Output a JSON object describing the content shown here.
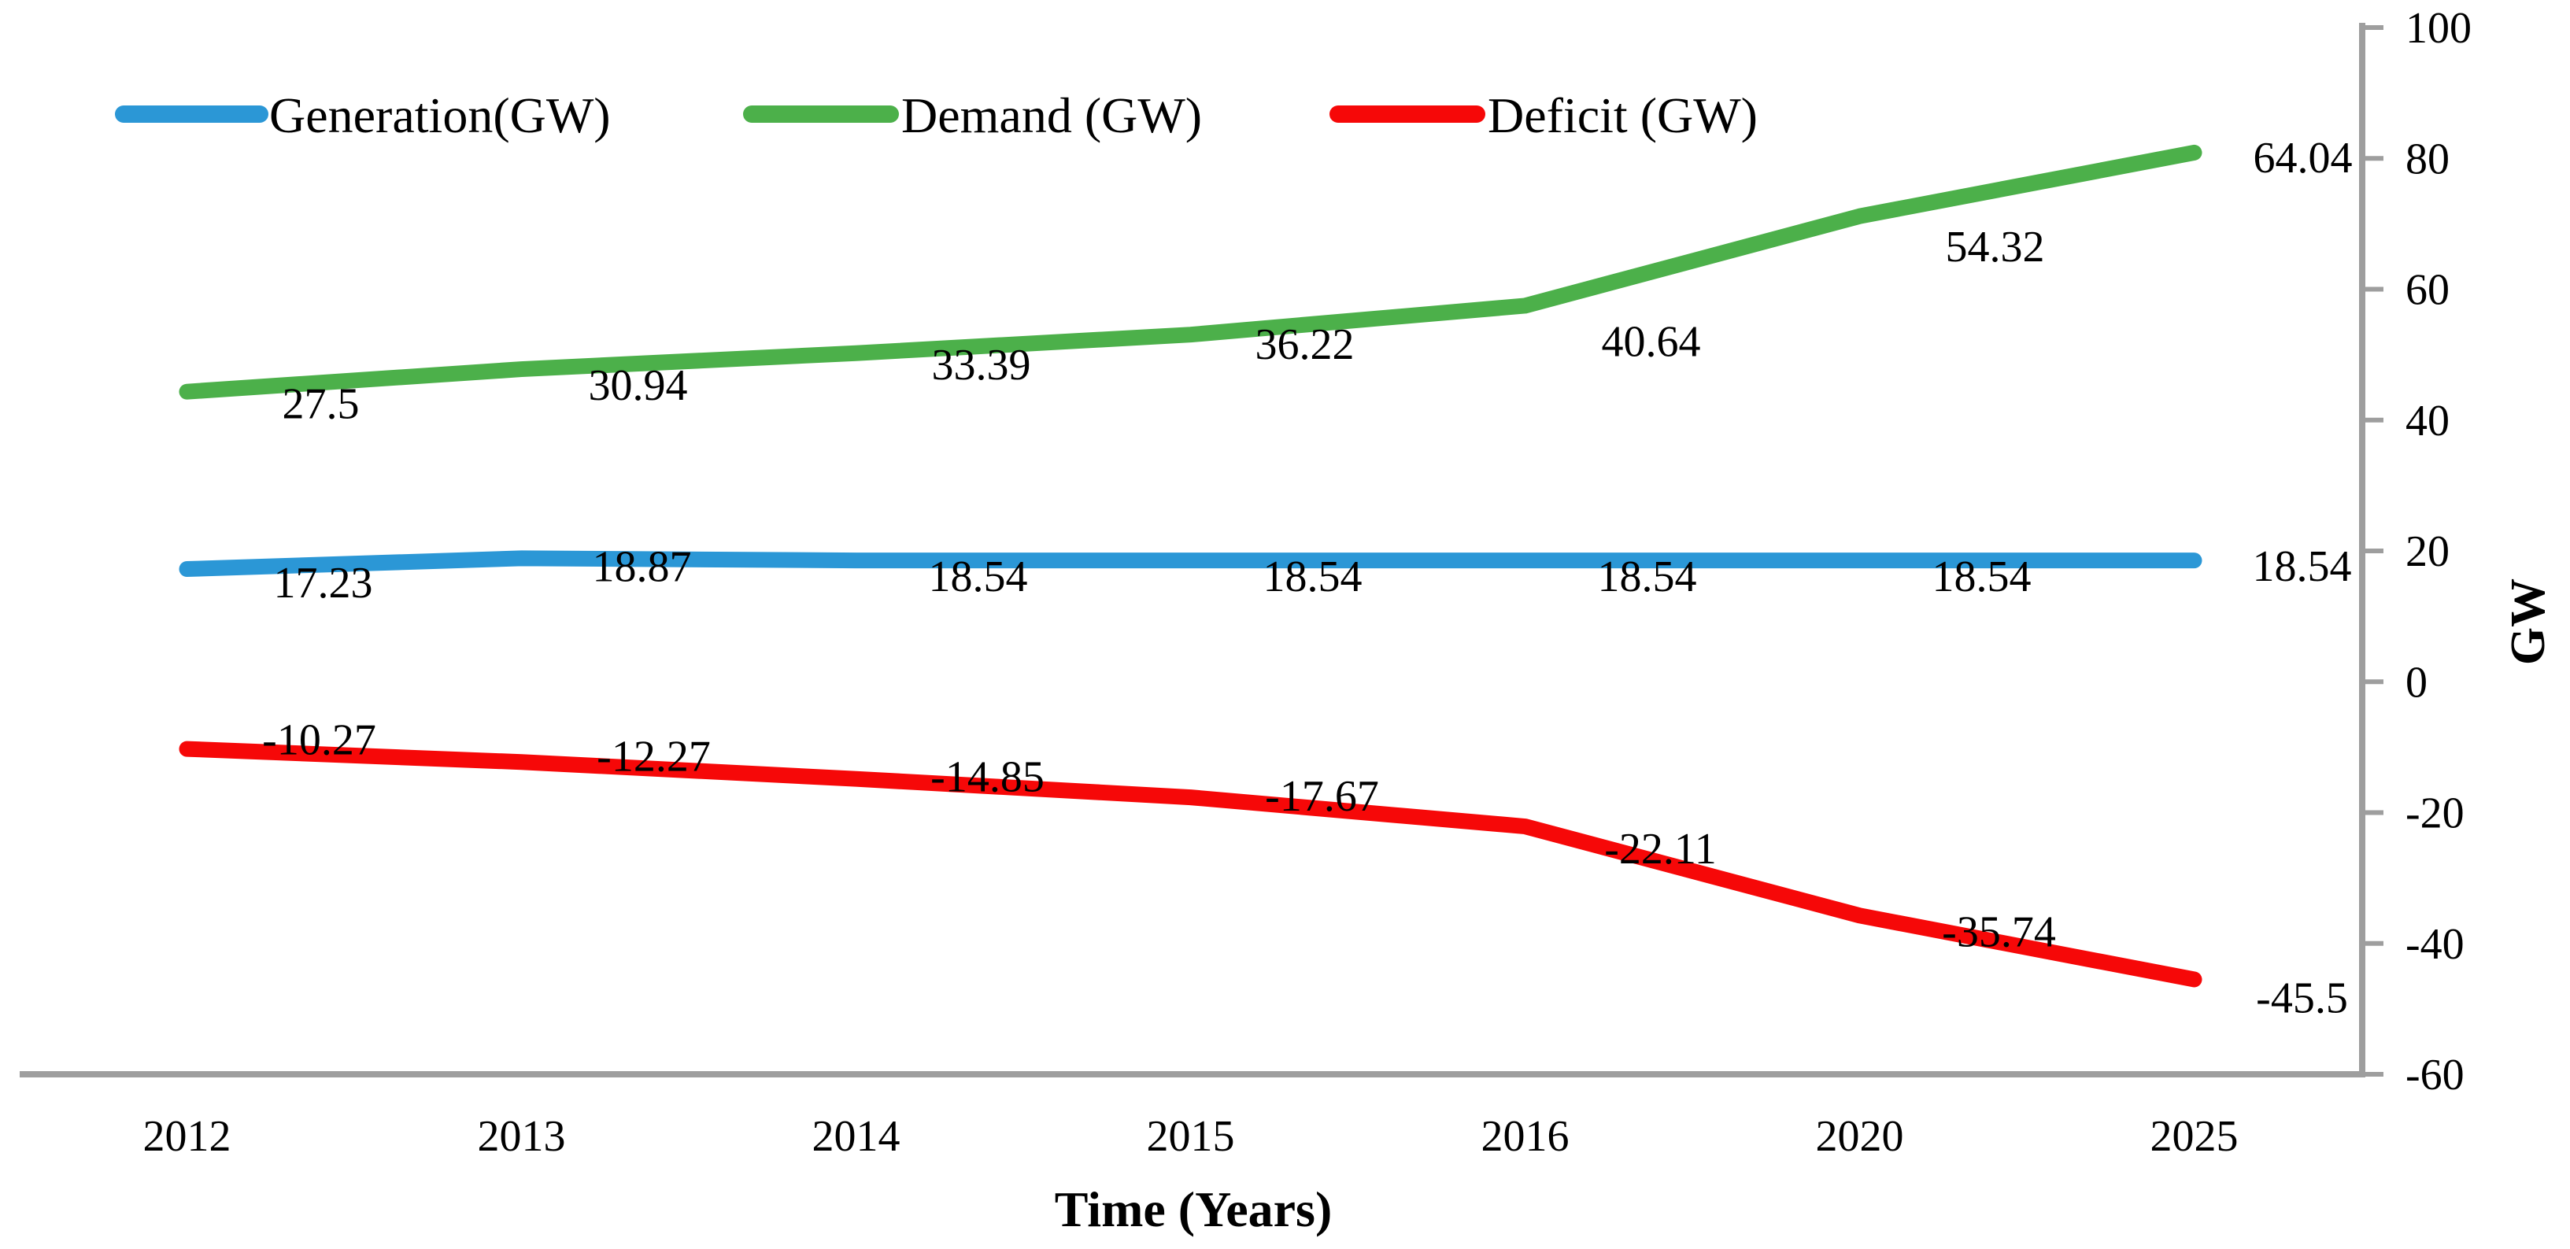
{
  "figure": {
    "background": "#ffffff",
    "description": "Line chart of power Generation, Demand and Deficit in GW over years"
  },
  "chart_data": {
    "type": "line",
    "title": "",
    "xlabel": "Time (Years)",
    "ylabel": "GW",
    "x_categories": [
      "2012",
      "2013",
      "2014",
      "2015",
      "2016",
      "2020",
      "2025"
    ],
    "ylim": [
      -60,
      100
    ],
    "y_ticks": [
      100,
      80,
      60,
      40,
      20,
      0,
      -20,
      -40,
      -60
    ],
    "y_tick_labels": [
      "100",
      "80",
      "60",
      "40",
      "20",
      "0",
      "-20",
      "-40",
      "-60"
    ],
    "y_axis_side": "right",
    "grid": false,
    "legend_position": "top-inside",
    "axis_color": "#9e9e9e",
    "text_color": "#000000",
    "series": [
      {
        "name": "Generation(GW)",
        "color": "#2b97d6",
        "values": [
          17.23,
          18.87,
          18.54,
          18.54,
          18.54,
          18.54,
          18.54
        ],
        "point_labels": [
          "17.23",
          "18.87",
          "18.54",
          "18.54",
          "18.54",
          "18.54",
          "18.54"
        ],
        "visual_y_offset_units": 0
      },
      {
        "name": "Demand (GW)",
        "color": "#4cb04a",
        "values": [
          27.5,
          30.94,
          33.39,
          36.22,
          40.64,
          54.32,
          64.04
        ],
        "point_labels": [
          "27.5",
          "30.94",
          "33.39",
          "36.22",
          "40.64",
          "54.32",
          "64.04"
        ],
        "visual_y_offset_units": 16.84
      },
      {
        "name": "Deficit (GW)",
        "color": "#f60808",
        "values": [
          -10.27,
          -12.27,
          -14.85,
          -17.67,
          -22.11,
          -35.74,
          -45.5
        ],
        "point_labels": [
          "-10.27",
          "-12.27",
          "-14.85",
          "-17.67",
          "-22.11",
          "-35.74",
          "-45.5"
        ],
        "visual_y_offset_units": 0
      }
    ]
  }
}
